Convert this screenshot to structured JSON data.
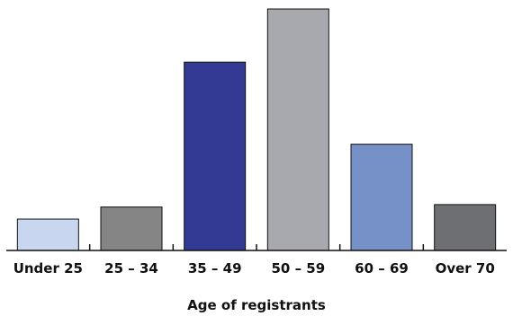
{
  "chart_data": {
    "type": "bar",
    "title": "",
    "xlabel": "Age of registrants",
    "ylabel": "",
    "categories": [
      "Under 25",
      "25 – 34",
      "35 – 49",
      "50 – 59",
      "60 – 69",
      "Over 70"
    ],
    "values": [
      13,
      18,
      78,
      100,
      44,
      19
    ],
    "ylim": [
      0,
      100
    ],
    "grid": false,
    "legend": "none",
    "colors": [
      "#c8d7ef",
      "#858585",
      "#323a93",
      "#a8a9ae",
      "#7591c8",
      "#6e6f72"
    ],
    "axis_color": "#111111"
  }
}
